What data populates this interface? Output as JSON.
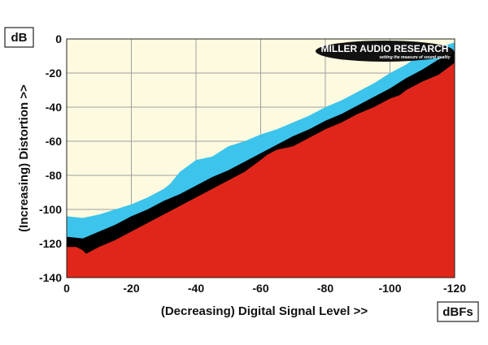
{
  "chart_data": {
    "type": "area",
    "title": "",
    "xlabel": "(Decreasing) Digital Signal Level >>",
    "ylabel": "(Increasing) Distortion >>",
    "x_unit": "dBFs",
    "y_unit": "dB",
    "xlim": [
      0,
      -120
    ],
    "ylim": [
      -140,
      0
    ],
    "x_ticks": [
      "0",
      "-20",
      "-40",
      "-60",
      "-80",
      "-100",
      "-120"
    ],
    "y_ticks": [
      "0",
      "-20",
      "-40",
      "-60",
      "-80",
      "-100",
      "-120",
      "-140"
    ],
    "grid": true,
    "logo": {
      "name": "MILLER AUDIO RESEARCH",
      "tagline": "setting the measure of sound quality"
    },
    "colors": {
      "background": "#fdfae0",
      "blue_band": "#3cc4ec",
      "black_band": "#000000",
      "red_region": "#e0261a",
      "grid": "#a0a0a0"
    },
    "series": [
      {
        "color": "#3cc4ec",
        "x": [
          0,
          -5,
          -10,
          -20,
          -25,
          -30,
          -32,
          -35,
          -40,
          -45,
          -50,
          -55,
          -60,
          -65,
          -70,
          -75,
          -80,
          -85,
          -90,
          -95,
          -100,
          -105,
          -108,
          -110,
          -115,
          -120
        ],
        "values": [
          -104,
          -105,
          -103,
          -97,
          -93,
          -88,
          -85,
          -78,
          -71,
          -69,
          -63,
          -60,
          -56,
          -53,
          -49,
          -45,
          -40,
          -36,
          -31,
          -26,
          -20,
          -15,
          -11,
          -9,
          -5,
          -2
        ]
      },
      {
        "color": "#000000",
        "x": [
          0,
          -5,
          -10,
          -15,
          -20,
          -25,
          -30,
          -35,
          -40,
          -45,
          -50,
          -55,
          -60,
          -65,
          -70,
          -75,
          -80,
          -85,
          -90,
          -95,
          -100,
          -105,
          -110,
          -115,
          -120
        ],
        "values": [
          -116,
          -117,
          -113,
          -109,
          -104,
          -100,
          -95,
          -91,
          -86,
          -81,
          -77,
          -72,
          -67,
          -62,
          -57,
          -53,
          -48,
          -44,
          -39,
          -34,
          -29,
          -23,
          -18,
          -12,
          -7
        ]
      },
      {
        "color": "#e0261a",
        "x": [
          0,
          -3,
          -5,
          -6,
          -8,
          -10,
          -15,
          -20,
          -25,
          -30,
          -35,
          -40,
          -45,
          -50,
          -55,
          -60,
          -62,
          -65,
          -70,
          -75,
          -78,
          -80,
          -85,
          -90,
          -95,
          -100,
          -103,
          -105,
          -110,
          -115,
          -120
        ],
        "values": [
          -122,
          -122,
          -124,
          -126,
          -124,
          -122,
          -118,
          -113,
          -108,
          -103,
          -98,
          -93,
          -88,
          -83,
          -78,
          -71,
          -68,
          -65,
          -63,
          -58,
          -55,
          -53,
          -49,
          -44,
          -40,
          -35,
          -33,
          -30,
          -25,
          -21,
          -14
        ]
      }
    ]
  }
}
